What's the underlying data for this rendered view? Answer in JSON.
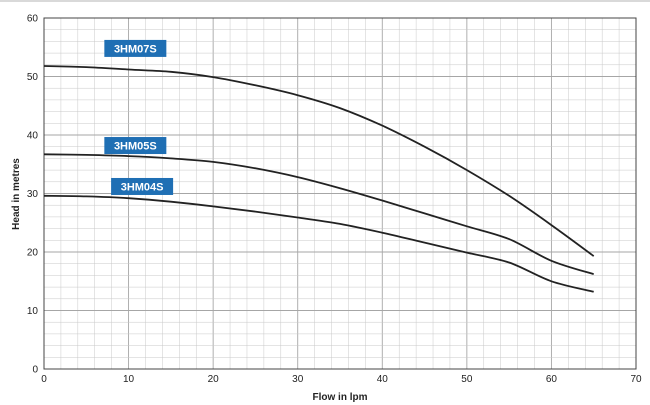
{
  "chart_data": {
    "type": "line",
    "title": "",
    "xlabel": "Flow in lpm",
    "ylabel": "Head in metres",
    "xlim": [
      0,
      70
    ],
    "ylim": [
      0,
      60
    ],
    "x_ticks": [
      "0",
      "10",
      "20",
      "30",
      "40",
      "50",
      "60",
      "70"
    ],
    "y_ticks": [
      "0",
      "10",
      "20",
      "30",
      "40",
      "50",
      "60"
    ],
    "grid": true,
    "colors": {
      "line": "#222222",
      "label_bg": "#1f6fb4",
      "grid_minor": "#c9c9c9",
      "grid_major": "#a6a6a6"
    },
    "series": [
      {
        "name": "3HM07S",
        "x": [
          0,
          5,
          10,
          15,
          20,
          25,
          30,
          35,
          40,
          45,
          50,
          55,
          60,
          65
        ],
        "y": [
          51.8,
          51.6,
          51.2,
          50.8,
          49.9,
          48.5,
          46.8,
          44.6,
          41.6,
          38.0,
          34.0,
          29.6,
          24.6,
          19.3
        ]
      },
      {
        "name": "3HM05S",
        "x": [
          0,
          5,
          10,
          15,
          20,
          25,
          30,
          35,
          40,
          45,
          50,
          55,
          60,
          65
        ],
        "y": [
          36.7,
          36.6,
          36.4,
          36.0,
          35.4,
          34.3,
          32.8,
          30.9,
          28.8,
          26.6,
          24.4,
          22.2,
          18.5,
          16.2
        ]
      },
      {
        "name": "3HM04S",
        "x": [
          0,
          5,
          10,
          15,
          20,
          25,
          30,
          35,
          40,
          45,
          50,
          55,
          60,
          65
        ],
        "y": [
          29.6,
          29.5,
          29.2,
          28.6,
          27.8,
          26.9,
          25.9,
          24.8,
          23.3,
          21.6,
          19.9,
          18.2,
          15.0,
          13.2
        ]
      }
    ]
  }
}
